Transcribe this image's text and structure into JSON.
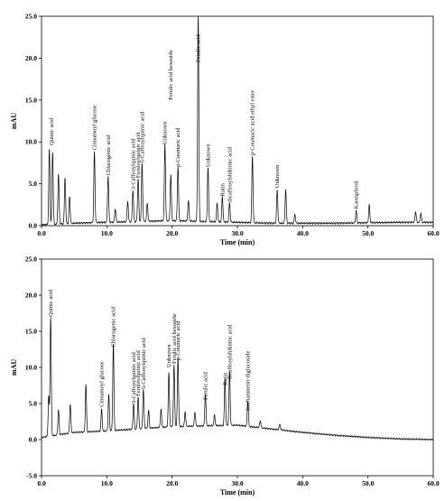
{
  "chart_data": [
    {
      "type": "line",
      "xlabel": "Time (min)",
      "ylabel": "mAU",
      "xlim": [
        0,
        60
      ],
      "ylim": [
        0,
        25
      ],
      "xticks": [
        "0.0",
        "10.0",
        "20.0",
        "30.0",
        "40.0",
        "50.0",
        "60.0"
      ],
      "yticks": [
        "0.0",
        "5.0",
        "10.0",
        "15.0",
        "20.0",
        "25.0"
      ],
      "baseline": [
        [
          0,
          0.1
        ],
        [
          5,
          0.3
        ],
        [
          10,
          0.4
        ],
        [
          20,
          0.6
        ],
        [
          25,
          0.5
        ],
        [
          35,
          0.3
        ],
        [
          45,
          0.3
        ],
        [
          55,
          0.4
        ],
        [
          60,
          0.4
        ]
      ],
      "peaks": [
        {
          "t": 1.2,
          "h": 9.0
        },
        {
          "t": 1.7,
          "h": 8.6
        },
        {
          "t": 2.6,
          "h": 6.0
        },
        {
          "t": 3.6,
          "h": 5.5
        },
        {
          "t": 4.3,
          "h": 3.2
        },
        {
          "t": 8.1,
          "h": 8.5
        },
        {
          "t": 10.2,
          "h": 5.5
        },
        {
          "t": 11.3,
          "h": 1.6
        },
        {
          "t": 13.2,
          "h": 2.5
        },
        {
          "t": 14.0,
          "h": 3.8
        },
        {
          "t": 14.8,
          "h": 5.2
        },
        {
          "t": 15.4,
          "h": 7.0
        },
        {
          "t": 16.2,
          "h": 2.2
        },
        {
          "t": 18.9,
          "h": 9.2
        },
        {
          "t": 19.8,
          "h": 5.5
        },
        {
          "t": 20.9,
          "h": 6.5
        },
        {
          "t": 22.5,
          "h": 2.5
        },
        {
          "t": 24.0,
          "h": 24.5
        },
        {
          "t": 25.5,
          "h": 6.5
        },
        {
          "t": 26.9,
          "h": 2.2
        },
        {
          "t": 27.7,
          "h": 3.0
        },
        {
          "t": 28.8,
          "h": 2.3
        },
        {
          "t": 32.3,
          "h": 7.9
        },
        {
          "t": 36.1,
          "h": 4.0
        },
        {
          "t": 37.4,
          "h": 4.0
        },
        {
          "t": 38.8,
          "h": 1.0
        },
        {
          "t": 48.2,
          "h": 1.5
        },
        {
          "t": 50.2,
          "h": 2.1
        },
        {
          "t": 57.3,
          "h": 1.3
        },
        {
          "t": 58.1,
          "h": 1.1
        }
      ],
      "annotations": [
        {
          "text": "Quinic acid",
          "t": 1.5,
          "y": 9.6
        },
        {
          "text": "Cinnamoyl glucose",
          "t": 8.1,
          "y": 9.0
        },
        {
          "text": "Chlorogenic acid",
          "t": 10.2,
          "y": 6.0
        },
        {
          "text": "3-Caffeoylquinic acid",
          "t": 14.0,
          "y": 4.3
        },
        {
          "text": "Feruloylquinic acid",
          "t": 14.8,
          "y": 5.7
        },
        {
          "text": "5-Caffeoylquinic acid",
          "t": 15.4,
          "y": 7.5
        },
        {
          "text": "Unknown",
          "t": 18.9,
          "y": 9.7
        },
        {
          "text": "Ferulic acid hexoside",
          "t": 19.8,
          "y": 15.0
        },
        {
          "text": "p-Coumaric acid",
          "t": 20.9,
          "y": 7.0
        },
        {
          "text": "Ferulic acid",
          "t": 24.0,
          "y": 19.5
        },
        {
          "text": "Unknown",
          "t": 25.5,
          "y": 7.0
        },
        {
          "text": "Rutin",
          "t": 27.7,
          "y": 3.5
        },
        {
          "text": "dicaffeoylshikimic acid",
          "t": 28.8,
          "y": 2.8
        },
        {
          "text": "p-Coumaric acid ethyl ester",
          "t": 32.3,
          "y": 8.4
        },
        {
          "text": "Unknown",
          "t": 36.1,
          "y": 4.5
        },
        {
          "text": "Kaempferol",
          "t": 48.2,
          "y": 2.0
        }
      ]
    },
    {
      "type": "line",
      "xlabel": "Time (min)",
      "ylabel": "mAU",
      "xlim": [
        0,
        60
      ],
      "ylim": [
        -5,
        25
      ],
      "xticks": [
        "0.0",
        "10.0",
        "20.0",
        "30.0",
        "40.0",
        "50.0",
        "60.0"
      ],
      "yticks": [
        "-5.0",
        "0.0",
        "5.0",
        "10.0",
        "15.0",
        "20.0",
        "25.0"
      ],
      "baseline": [
        [
          0,
          0.3
        ],
        [
          5,
          1.0
        ],
        [
          10,
          1.2
        ],
        [
          20,
          1.8
        ],
        [
          30,
          2.0
        ],
        [
          35,
          1.5
        ],
        [
          40,
          1.0
        ],
        [
          45,
          0.6
        ],
        [
          50,
          0.3
        ],
        [
          55,
          0.1
        ],
        [
          60,
          0.0
        ]
      ],
      "peaks": [
        {
          "t": 1.1,
          "h": 5.5
        },
        {
          "t": 1.4,
          "h": 16.5
        },
        {
          "t": 2.6,
          "h": 3.5
        },
        {
          "t": 4.4,
          "h": 4.0
        },
        {
          "t": 6.8,
          "h": 6.5
        },
        {
          "t": 9.2,
          "h": 3.0
        },
        {
          "t": 10.3,
          "h": 5.0
        },
        {
          "t": 11.0,
          "h": 12.0
        },
        {
          "t": 14.1,
          "h": 3.5
        },
        {
          "t": 14.8,
          "h": 4.5
        },
        {
          "t": 15.6,
          "h": 5.5
        },
        {
          "t": 16.4,
          "h": 2.5
        },
        {
          "t": 18.3,
          "h": 2.5
        },
        {
          "t": 19.5,
          "h": 7.5
        },
        {
          "t": 20.3,
          "h": 8.5
        },
        {
          "t": 20.9,
          "h": 9.5
        },
        {
          "t": 22.0,
          "h": 2.0
        },
        {
          "t": 23.5,
          "h": 2.0
        },
        {
          "t": 25.1,
          "h": 4.5
        },
        {
          "t": 26.5,
          "h": 1.5
        },
        {
          "t": 28.1,
          "h": 6.5
        },
        {
          "t": 28.8,
          "h": 7.5
        },
        {
          "t": 31.6,
          "h": 3.5
        },
        {
          "t": 33.5,
          "h": 1.0
        },
        {
          "t": 36.5,
          "h": 0.8
        }
      ],
      "annotations": [
        {
          "text": "Quinic acid",
          "t": 1.4,
          "y": 17.0
        },
        {
          "text": "Cinnamoyl glucose",
          "t": 9.2,
          "y": 4.5
        },
        {
          "text": "Chlorogenic acid",
          "t": 11.0,
          "y": 12.8
        },
        {
          "text": "3-Caffeoylquinic acid",
          "t": 14.1,
          "y": 5.0
        },
        {
          "text": "Feruloylquinic acid",
          "t": 14.8,
          "y": 6.0
        },
        {
          "text": "5-Caffeoylquinic acid",
          "t": 15.6,
          "y": 7.0
        },
        {
          "text": "Unknown",
          "t": 19.5,
          "y": 10.0
        },
        {
          "text": "Ferulic acid hexoside",
          "t": 20.3,
          "y": 10.5
        },
        {
          "text": "p-Coumaric acid",
          "t": 20.9,
          "y": 11.0
        },
        {
          "text": "Ferulic acid",
          "t": 25.1,
          "y": 5.5
        },
        {
          "text": "Rutin",
          "t": 28.1,
          "y": 7.5
        },
        {
          "text": "dicaffeoylshikimic acid",
          "t": 28.8,
          "y": 8.3
        },
        {
          "text": "Isorhamnetin-diglucoside",
          "t": 31.6,
          "y": 4.0
        }
      ]
    }
  ]
}
